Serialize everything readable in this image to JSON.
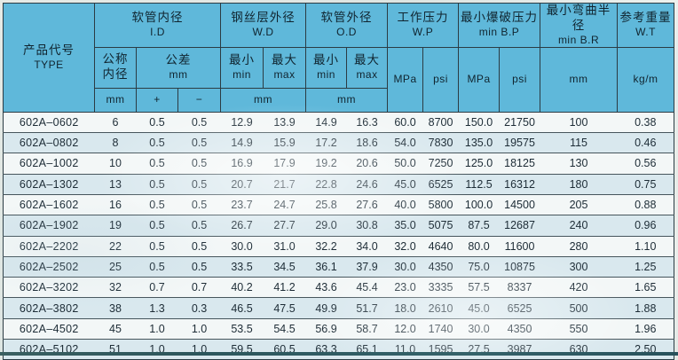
{
  "table": {
    "product_code": {
      "zh": "产品代号",
      "en": "TYPE"
    },
    "groups": [
      {
        "zh": "软管内径",
        "en": "I.D"
      },
      {
        "zh": "钢丝层外径",
        "en": "W.D"
      },
      {
        "zh": "软管外径",
        "en": "O.D"
      },
      {
        "zh": "工作压力",
        "en": "W.P"
      },
      {
        "zh": "最小爆破压力",
        "en": "min B.P"
      },
      {
        "zh": "最小弯曲半径",
        "en": "min B.R"
      },
      {
        "zh": "参考重量",
        "en": "W.T"
      }
    ],
    "subheaders": {
      "nominal_line1": "公称",
      "nominal_line2": "内径",
      "tolerance_zh": "公差",
      "tolerance_unit": "mm",
      "min_zh": "最小",
      "min_en": "min",
      "max_zh": "最大",
      "max_en": "max",
      "unit_mm": "mm",
      "unit_mpa": "MPa",
      "unit_psi": "psi",
      "unit_kgm": "kg/m",
      "plus": "+",
      "minus": "−"
    },
    "rows": [
      [
        "602A–0602",
        "6",
        "0.5",
        "0.5",
        "12.9",
        "13.9",
        "14.9",
        "16.3",
        "60.0",
        "8700",
        "150.0",
        "21750",
        "100",
        "0.38"
      ],
      [
        "602A–0802",
        "8",
        "0.5",
        "0.5",
        "14.9",
        "15.9",
        "17.2",
        "18.6",
        "54.0",
        "7830",
        "135.0",
        "19575",
        "115",
        "0.46"
      ],
      [
        "602A–1002",
        "10",
        "0.5",
        "0.5",
        "16.9",
        "17.9",
        "19.2",
        "20.6",
        "50.0",
        "7250",
        "125.0",
        "18125",
        "130",
        "0.56"
      ],
      [
        "602A–1302",
        "13",
        "0.5",
        "0.5",
        "20.7",
        "21.7",
        "22.8",
        "24.6",
        "45.0",
        "6525",
        "112.5",
        "16312",
        "180",
        "0.75"
      ],
      [
        "602A–1602",
        "16",
        "0.5",
        "0.5",
        "23.7",
        "24.7",
        "25.8",
        "27.6",
        "40.0",
        "5800",
        "100.0",
        "14500",
        "205",
        "0.88"
      ],
      [
        "602A–1902",
        "19",
        "0.5",
        "0.5",
        "26.7",
        "27.7",
        "29.0",
        "30.8",
        "35.0",
        "5075",
        "87.5",
        "12687",
        "240",
        "0.96"
      ],
      [
        "602A–2202",
        "22",
        "0.5",
        "0.5",
        "30.0",
        "31.0",
        "32.2",
        "34.0",
        "32.0",
        "4640",
        "80.0",
        "11600",
        "280",
        "1.10"
      ],
      [
        "602A–2502",
        "25",
        "0.5",
        "0.5",
        "33.5",
        "34.5",
        "36.1",
        "37.9",
        "30.0",
        "4350",
        "75.0",
        "10875",
        "300",
        "1.25"
      ],
      [
        "602A–3202",
        "32",
        "0.7",
        "0.7",
        "40.2",
        "41.2",
        "43.6",
        "45.4",
        "23.0",
        "3335",
        "57.5",
        "8337",
        "420",
        "1.65"
      ],
      [
        "602A–3802",
        "38",
        "1.3",
        "0.3",
        "46.5",
        "47.5",
        "49.9",
        "51.7",
        "18.0",
        "2610",
        "45.0",
        "6525",
        "500",
        "1.88"
      ],
      [
        "602A–4502",
        "45",
        "1.0",
        "1.0",
        "53.5",
        "54.5",
        "56.9",
        "58.7",
        "12.0",
        "1740",
        "30.0",
        "4350",
        "550",
        "1.96"
      ],
      [
        "602A–5102",
        "51",
        "1.0",
        "1.0",
        "59.5",
        "60.5",
        "63.3",
        "65.1",
        "11.0",
        "1595",
        "27.5",
        "3987",
        "630",
        "2.50"
      ]
    ]
  },
  "colors": {
    "header_bg": "#5fb8da",
    "row_stripe": "#d9e8ee",
    "border": "#2b3b43",
    "bottom_edge": "#2c565c"
  }
}
